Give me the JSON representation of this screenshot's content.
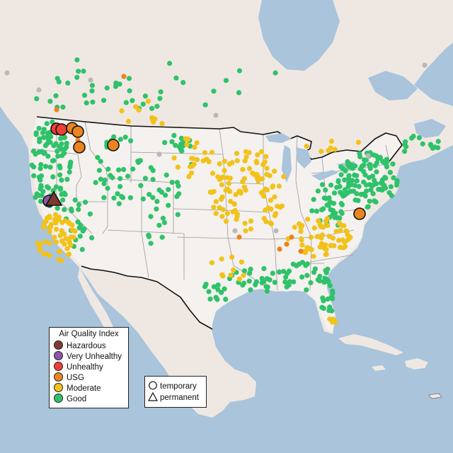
{
  "legend": {
    "title": "Air Quality Index",
    "categories": [
      {
        "key": "hazardous",
        "label": "Hazardous",
        "color": "#7e3a32"
      },
      {
        "key": "very_unhealthy",
        "label": "Very Unhealthy",
        "color": "#8e55a8"
      },
      {
        "key": "unhealthy",
        "label": "Unhealthy",
        "color": "#ee4035"
      },
      {
        "key": "usg",
        "label": "USG",
        "color": "#ea8420"
      },
      {
        "key": "moderate",
        "label": "Moderate",
        "color": "#f2c21a"
      },
      {
        "key": "good",
        "label": "Good",
        "color": "#2fc26a"
      }
    ]
  },
  "monitor_types": {
    "temporary": {
      "label": "temporary",
      "shape": "circle"
    },
    "permanent": {
      "label": "permanent",
      "shape": "triangle"
    }
  },
  "colors": {
    "water": "#a9c4db",
    "land": "#efe8e2",
    "usa": "#f4f1ee",
    "state_border": "#9a9a9a",
    "national_border": "#111111",
    "no_data": "#b9b9b9"
  }
}
